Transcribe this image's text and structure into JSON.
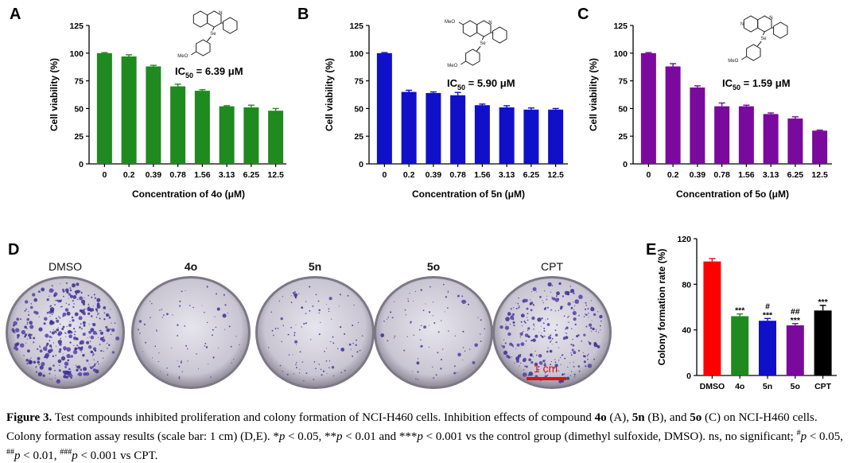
{
  "chart_data": [
    {
      "type": "bar",
      "panel_label": "A",
      "xlabel": "Concentration of 4o (μM)",
      "ylabel": "Cell viability (%)",
      "categories": [
        "0",
        "0.2",
        "0.39",
        "0.78",
        "1.56",
        "3.13",
        "6.25",
        "12.5"
      ],
      "values": [
        100,
        97,
        88,
        70,
        66,
        52,
        51,
        48
      ],
      "errors": [
        0.5,
        1.5,
        1,
        2,
        1,
        0.5,
        2,
        2
      ],
      "ylim": [
        0,
        125
      ],
      "yticks": [
        0,
        25,
        50,
        75,
        100,
        125
      ],
      "color": "#1f8a1f",
      "annotation": {
        "ic": "IC",
        "sub": "50",
        "value": " = 6.39 μM"
      }
    },
    {
      "type": "bar",
      "panel_label": "B",
      "xlabel": "Concentration of 5n (μM)",
      "ylabel": "Cell viability (%)",
      "categories": [
        "0",
        "0.2",
        "0.39",
        "0.78",
        "1.56",
        "3.13",
        "6.25",
        "12.5"
      ],
      "values": [
        100,
        65,
        64,
        62,
        53,
        51,
        49,
        49
      ],
      "errors": [
        0.5,
        1.5,
        1,
        2.5,
        1,
        1.5,
        1.5,
        1
      ],
      "ylim": [
        0,
        125
      ],
      "yticks": [
        0,
        25,
        50,
        75,
        100,
        125
      ],
      "color": "#1010c8",
      "annotation": {
        "ic": "IC",
        "sub": "50",
        "value": " = 5.90 μM"
      }
    },
    {
      "type": "bar",
      "panel_label": "C",
      "xlabel": "Concentration of 5o (μM)",
      "ylabel": "Cell viability (%)",
      "categories": [
        "0",
        "0.2",
        "0.39",
        "0.78",
        "1.56",
        "3.13",
        "6.25",
        "12.5"
      ],
      "values": [
        100,
        88,
        69,
        52,
        52,
        45,
        41,
        30
      ],
      "errors": [
        0.5,
        2.5,
        1.5,
        3,
        1,
        1,
        1.5,
        0.5
      ],
      "ylim": [
        0,
        125
      ],
      "yticks": [
        0,
        25,
        50,
        75,
        100,
        125
      ],
      "color": "#7a0a9e",
      "annotation": {
        "ic": "IC",
        "sub": "50",
        "value": " = 1.59 μM"
      }
    },
    {
      "type": "bar",
      "panel_label": "E",
      "xlabel": "",
      "ylabel": "Colony formation rate (%)",
      "categories": [
        "DMSO",
        "4o",
        "5n",
        "5o",
        "CPT"
      ],
      "values": [
        100,
        52,
        48,
        44,
        57
      ],
      "errors": [
        2.5,
        2,
        2,
        1.5,
        4.5
      ],
      "ylim": [
        0,
        120
      ],
      "yticks": [
        0,
        40,
        80,
        120
      ],
      "colors": [
        "#ff0000",
        "#1f8a1f",
        "#1010c8",
        "#7a0a9e",
        "#000000"
      ],
      "marks": [
        [],
        [
          "***"
        ],
        [
          "#",
          "***"
        ],
        [
          "##",
          "***"
        ],
        [
          "***"
        ]
      ]
    }
  ],
  "chem_labels": {
    "ring": "N",
    "se": "Se",
    "meo": "MeO"
  },
  "panel_d": {
    "panel_label": "D",
    "dish_labels": [
      "DMSO",
      "4o",
      "5n",
      "5o",
      "CPT"
    ],
    "dish_bold": [
      false,
      true,
      true,
      true,
      false
    ],
    "colony_density": [
      0.9,
      0.18,
      0.25,
      0.2,
      0.7
    ],
    "scale_bar_label": "1 cm",
    "scale_bar_color": "#e01010"
  },
  "caption": {
    "fig": "Figure 3.",
    "parts": [
      " Test compounds inhibited proliferation and colony formation of NCI-H460 cells. Inhibition effects of compound ",
      "4o",
      " (A), ",
      "5n",
      " (B), and ",
      "5o",
      " (C) on NCI-H460 cells. Colony formation assay results (scale bar: 1 cm) (D,E). *",
      "p",
      " < 0.05, **",
      "p",
      " < 0.01 and ***",
      "p",
      " < 0.001 vs the control group (dimethyl sulfoxide, DMSO). ns, no significant; ",
      "#",
      "p",
      " < 0.05, ",
      "##",
      "p",
      " < 0.01, ",
      "###",
      "p",
      " < 0.001 vs CPT."
    ]
  }
}
